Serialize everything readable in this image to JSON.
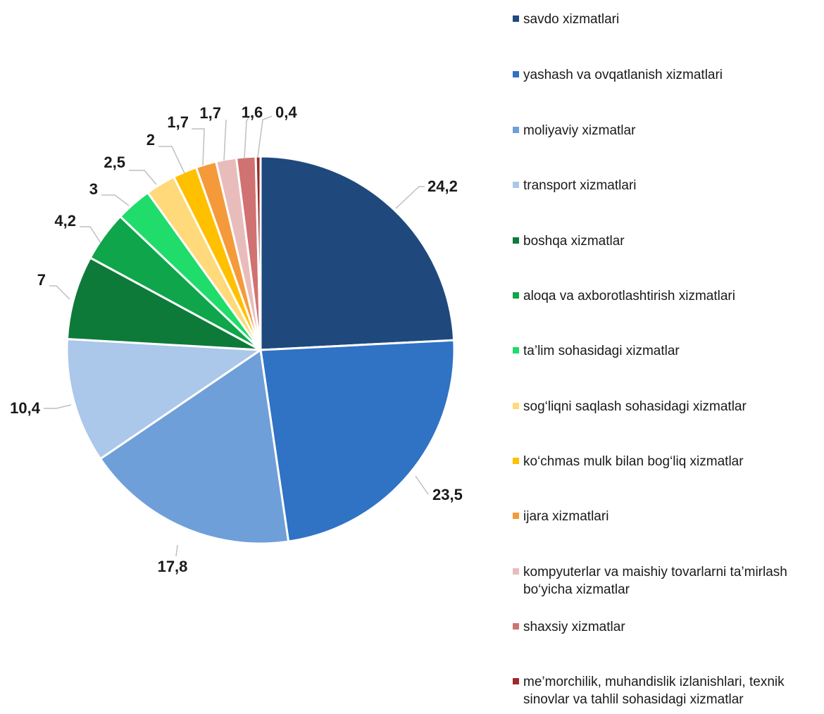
{
  "chart_data": {
    "type": "pie",
    "start_angle_deg": 0,
    "direction": "clockwise",
    "legend_position": "right",
    "slices": [
      {
        "label": "savdo xizmatlari",
        "value": 24.2,
        "display": "24,2",
        "color": "#1f497d"
      },
      {
        "label": "yashash va ovqatlanish xizmatlari",
        "value": 23.5,
        "display": "23,5",
        "color": "#3072c4"
      },
      {
        "label": "moliyaviy xizmatlar",
        "value": 17.8,
        "display": "17,8",
        "color": "#6f9fd8"
      },
      {
        "label": "transport xizmatlari",
        "value": 10.4,
        "display": "10,4",
        "color": "#abc7ea"
      },
      {
        "label": "boshqa xizmatlar",
        "value": 7,
        "display": "7",
        "color": "#0e7a3a"
      },
      {
        "label": "aloqa va axborotlashtirish xizmatlari",
        "value": 4.2,
        "display": "4,2",
        "color": "#0fa54a"
      },
      {
        "label": "ta’lim sohasidagi xizmatlar",
        "value": 3,
        "display": "3",
        "color": "#1fdc6b"
      },
      {
        "label": "sog‘liqni saqlash sohasidagi xizmatlar",
        "value": 2.5,
        "display": "2,5",
        "color": "#ffd97a"
      },
      {
        "label": "ko‘chmas mulk bilan bog‘liq xizmatlar",
        "value": 2,
        "display": "2",
        "color": "#ffc000"
      },
      {
        "label": "ijara xizmatlari",
        "value": 1.7,
        "display": "1,7",
        "color": "#f59a3a"
      },
      {
        "label": "kompyuterlar va maishiy tovarlarni ta’mirlash bo‘yicha xizmatlar",
        "value": 1.7,
        "display": "1,7",
        "color": "#e9bcbc"
      },
      {
        "label": "shaxsiy xizmatlar",
        "value": 1.6,
        "display": "1,6",
        "color": "#d07272"
      },
      {
        "label": "me’morchilik, muhandislik izlanishlari, texnik sinovlar va tahlil sohasidagi xizmatlar",
        "value": 0.4,
        "display": "0,4",
        "color": "#9c2b2b"
      }
    ]
  }
}
